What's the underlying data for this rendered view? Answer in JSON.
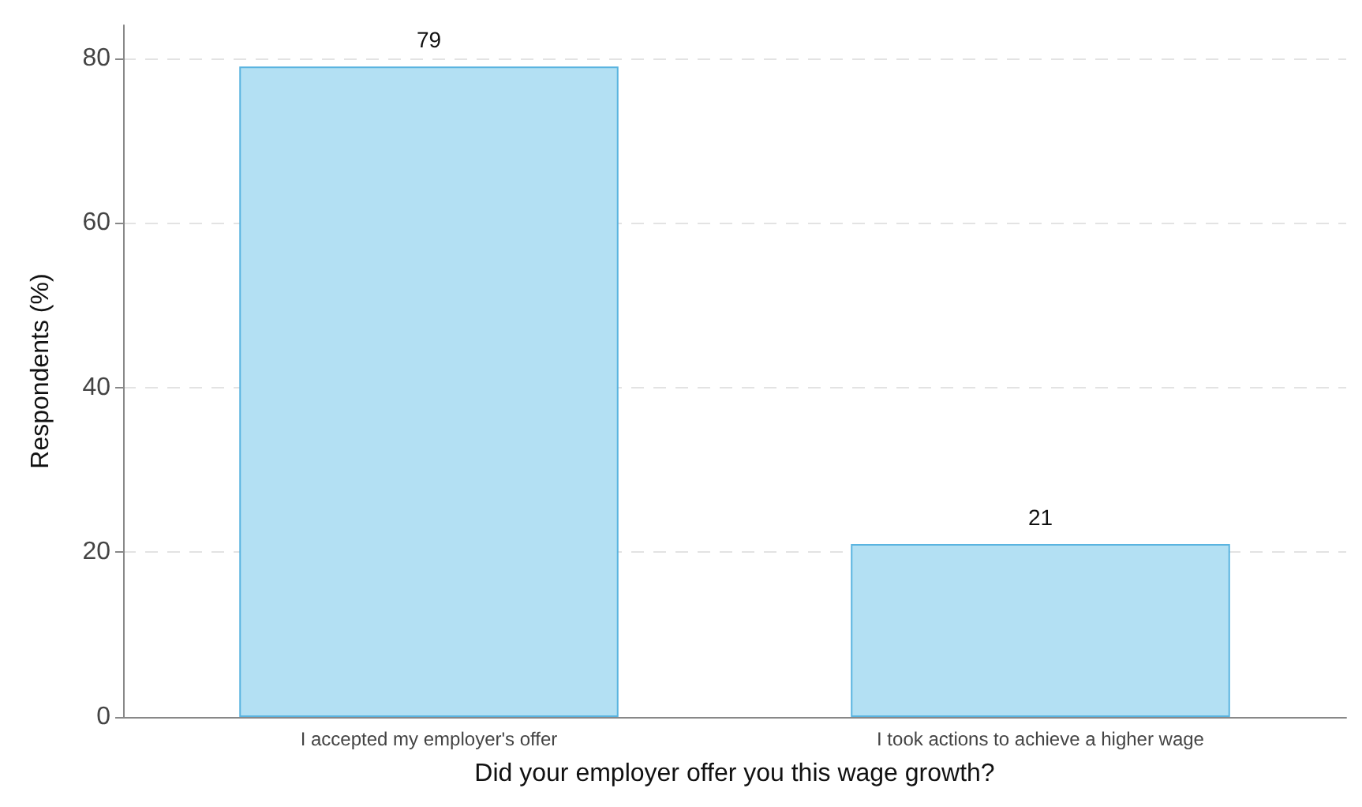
{
  "chart_data": {
    "type": "bar",
    "xlabel": "Did your employer offer you this wage growth?",
    "ylabel": "Respondents (%)",
    "categories": [
      "I accepted my employer's offer",
      "I took actions to achieve a higher wage"
    ],
    "values": [
      79,
      21
    ],
    "color": "#b3e0f3",
    "ylim": [
      0,
      84
    ],
    "yticks": [
      0,
      20,
      40,
      60,
      80
    ],
    "grid": "y",
    "data_labels": true
  }
}
